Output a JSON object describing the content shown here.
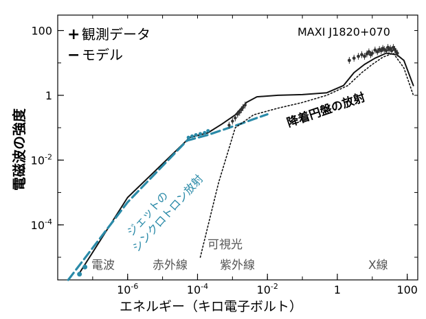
{
  "colors": {
    "model": "#111111",
    "jet": "#2a8aa8",
    "disk": "#111111",
    "data_markers": "#333333",
    "band_labels": "#555555",
    "text": "#000000"
  },
  "chart_data": {
    "type": "line",
    "title": "",
    "source_label": "MAXI J1820+070",
    "xlabel": "エネルギー（キロ電子ボルト）",
    "ylabel": "電磁波の強度",
    "x_scale": "log",
    "y_scale": "log",
    "xlim": [
      1e-08,
      200
    ],
    "ylim": [
      2e-06,
      300
    ],
    "x_ticks": [
      {
        "value": 1e-06,
        "base": "10",
        "exp": "-6"
      },
      {
        "value": 0.0001,
        "base": "10",
        "exp": "-4"
      },
      {
        "value": 0.01,
        "base": "10",
        "exp": "-2"
      },
      {
        "value": 1,
        "base": "1",
        "exp": ""
      },
      {
        "value": 100,
        "base": "100",
        "exp": ""
      }
    ],
    "y_ticks": [
      {
        "value": 100,
        "base": "100",
        "exp": ""
      },
      {
        "value": 1,
        "base": "1",
        "exp": ""
      },
      {
        "value": 0.01,
        "base": "10",
        "exp": "-2"
      },
      {
        "value": 0.0001,
        "base": "10",
        "exp": "-4"
      }
    ],
    "legend": [
      {
        "symbol": "+",
        "label": "観測データ"
      },
      {
        "symbol": "−",
        "label": "モデル"
      }
    ],
    "legend_position": "top-left",
    "annotations": {
      "jet_line1": "ジェットの",
      "jet_line2": "シンクロトロン放射",
      "disk": "降着円盤の放射",
      "visible": "可視光",
      "radio": "電波",
      "infrared": "赤外線",
      "ultraviolet": "紫外線",
      "xray": "X線"
    },
    "series": [
      {
        "style": "solid",
        "x": [
          4e-08,
          1e-06,
          6e-05,
          0.0002,
          0.0005,
          0.0012,
          0.0025,
          0.005,
          0.02,
          0.1,
          0.5,
          1.5,
          3,
          6,
          12,
          25,
          50,
          80,
          150
        ],
        "y": [
          3e-06,
          0.0007,
          0.05,
          0.07,
          0.13,
          0.25,
          0.6,
          0.9,
          1.0,
          1.05,
          1.2,
          2.0,
          5.0,
          9,
          14,
          20,
          18,
          12,
          2
        ]
      },
      {
        "style": "dashed",
        "x": [
          2e-08,
          1e-06,
          5e-05,
          0.0002,
          0.0008,
          0.002,
          0.005,
          0.01
        ],
        "y": [
          2e-06,
          0.0005,
          0.04,
          0.06,
          0.1,
          0.14,
          0.2,
          0.26
        ]
      },
      {
        "style": "dotted",
        "x": [
          0.00012,
          0.0004,
          0.0012,
          0.004,
          0.02,
          0.1,
          0.5,
          2,
          5,
          10,
          20,
          40,
          80,
          150
        ],
        "y": [
          1e-05,
          0.002,
          0.1,
          0.25,
          0.4,
          0.6,
          1.0,
          2.0,
          5,
          9,
          15,
          20,
          7,
          1
        ]
      }
    ],
    "observations": [
      {
        "group": "radio",
        "x": [
          4.2e-08,
          6e-08
        ],
        "y": [
          3e-06,
          5e-06
        ]
      },
      {
        "group": "ir_opt",
        "x": [
          5.5e-05,
          7e-05,
          9e-05,
          0.00012,
          0.00016,
          0.0002
        ],
        "y": [
          0.05,
          0.055,
          0.06,
          0.065,
          0.07,
          0.08
        ]
      },
      {
        "group": "uv",
        "x": [
          0.0008,
          0.001,
          0.0012,
          0.0014,
          0.0016,
          0.0018,
          0.002,
          0.0023
        ],
        "y": [
          0.12,
          0.16,
          0.2,
          0.26,
          0.3,
          0.36,
          0.42,
          0.5
        ]
      },
      {
        "group": "xray",
        "x": [
          2.2,
          3,
          4,
          5,
          6,
          7,
          8,
          9,
          10,
          12,
          14,
          16,
          18,
          20,
          22,
          25,
          28,
          30,
          33,
          36,
          40,
          44,
          48,
          52
        ],
        "y": [
          12,
          14,
          16,
          18,
          16,
          19,
          22,
          18,
          20,
          25,
          22,
          26,
          24,
          28,
          26,
          24,
          30,
          26,
          28,
          24,
          30,
          26,
          22,
          20
        ]
      }
    ]
  }
}
